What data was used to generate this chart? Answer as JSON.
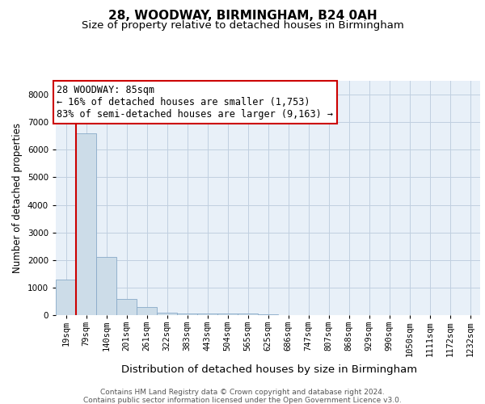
{
  "title": "28, WOODWAY, BIRMINGHAM, B24 0AH",
  "subtitle": "Size of property relative to detached houses in Birmingham",
  "xlabel": "Distribution of detached houses by size in Birmingham",
  "ylabel": "Number of detached properties",
  "footer_line1": "Contains HM Land Registry data © Crown copyright and database right 2024.",
  "footer_line2": "Contains public sector information licensed under the Open Government Licence v3.0.",
  "bin_labels": [
    "19sqm",
    "79sqm",
    "140sqm",
    "201sqm",
    "261sqm",
    "322sqm",
    "383sqm",
    "443sqm",
    "504sqm",
    "565sqm",
    "625sqm",
    "686sqm",
    "747sqm",
    "807sqm",
    "868sqm",
    "929sqm",
    "990sqm",
    "1050sqm",
    "1111sqm",
    "1172sqm",
    "1232sqm"
  ],
  "bar_values": [
    1300,
    6600,
    2100,
    600,
    280,
    100,
    60,
    55,
    50,
    45,
    40,
    0,
    0,
    0,
    0,
    0,
    0,
    0,
    0,
    0,
    0
  ],
  "bar_color": "#ccdce8",
  "bar_edge_color": "#88aac8",
  "vline_color": "#cc0000",
  "vline_x": 0.5,
  "annotation_title": "28 WOODWAY: 85sqm",
  "annotation_line1": "← 16% of detached houses are smaller (1,753)",
  "annotation_line2": "83% of semi-detached houses are larger (9,163) →",
  "annotation_box_color": "#ffffff",
  "annotation_edge_color": "#cc0000",
  "ylim": [
    0,
    8500
  ],
  "yticks": [
    0,
    1000,
    2000,
    3000,
    4000,
    5000,
    6000,
    7000,
    8000
  ],
  "grid_color": "#c0cfe0",
  "background_color": "#e8f0f8",
  "title_fontsize": 11,
  "subtitle_fontsize": 9.5,
  "xlabel_fontsize": 9.5,
  "ylabel_fontsize": 8.5,
  "tick_fontsize": 7.5,
  "annotation_fontsize": 8.5,
  "footer_fontsize": 6.5
}
